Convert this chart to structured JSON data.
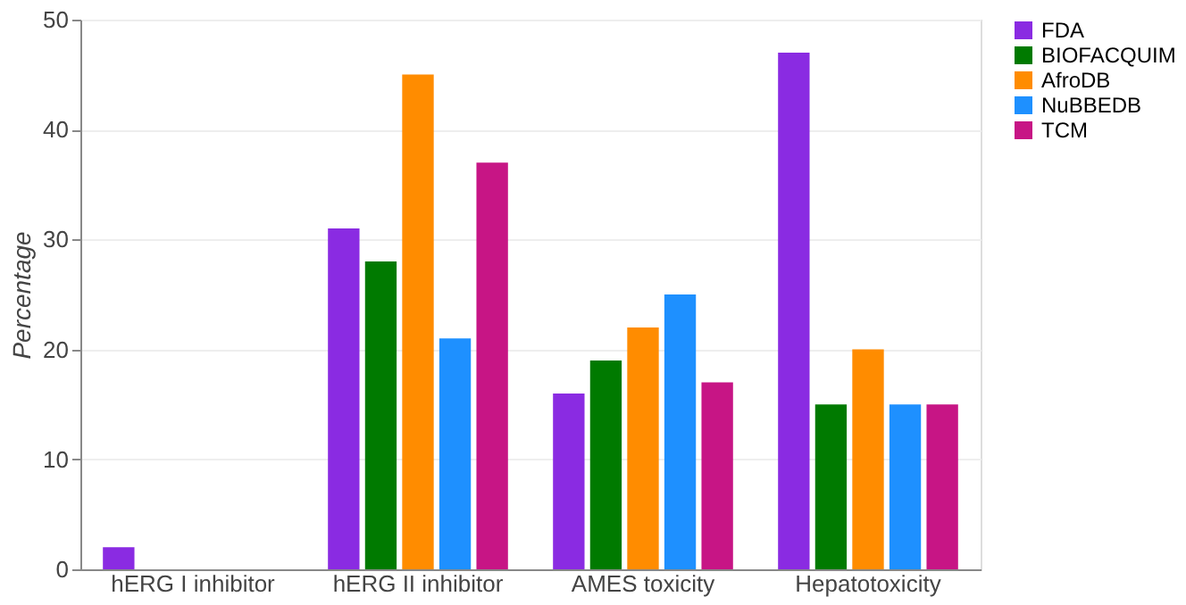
{
  "chart_data": {
    "type": "bar",
    "ylabel": "Percentage",
    "categories": [
      "hERG I inhibitor",
      "hERG II inhibitor",
      "AMES toxicity",
      "Hepatotoxicity"
    ],
    "series": [
      {
        "name": "FDA",
        "color": "#8a2be2",
        "values": [
          2,
          31,
          16,
          47
        ]
      },
      {
        "name": "BIOFACQUIM",
        "color": "#007a00",
        "values": [
          0,
          28,
          19,
          15
        ]
      },
      {
        "name": "AfroDB",
        "color": "#ff8c00",
        "values": [
          0,
          45,
          22,
          20
        ]
      },
      {
        "name": "NuBBEDB",
        "color": "#1e90ff",
        "values": [
          0,
          21,
          25,
          15
        ]
      },
      {
        "name": "TCM",
        "color": "#c71585",
        "values": [
          0,
          37,
          17,
          15
        ]
      }
    ],
    "ylim": [
      0,
      50
    ],
    "yticks": [
      0,
      10,
      20,
      30,
      40,
      50
    ],
    "grid": "y",
    "legend": "right"
  }
}
